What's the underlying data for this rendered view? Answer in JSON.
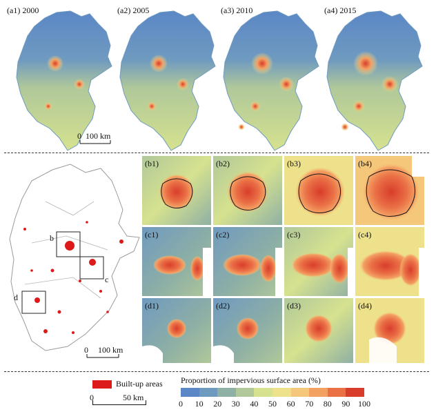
{
  "top_panels": [
    {
      "label": "(a1)  2000"
    },
    {
      "label": "(a2)  2005"
    },
    {
      "label": "(a3)  2010"
    },
    {
      "label": "(a4)  2015"
    }
  ],
  "top_scale": {
    "zero": "0",
    "distance": "100 km"
  },
  "left_map": {
    "box_labels": [
      "b",
      "c",
      "d"
    ],
    "scale": {
      "zero": "0",
      "distance": "100 km"
    }
  },
  "zoom_panels": [
    {
      "label": "(b1)"
    },
    {
      "label": "(b2)"
    },
    {
      "label": "(b3)"
    },
    {
      "label": "(b4)"
    },
    {
      "label": "(c1)"
    },
    {
      "label": "(c2)"
    },
    {
      "label": "(c3)"
    },
    {
      "label": "(c4)"
    },
    {
      "label": "(d1)"
    },
    {
      "label": "(d2)"
    },
    {
      "label": "(d3)"
    },
    {
      "label": "(d4)"
    }
  ],
  "legend": {
    "builtup_label": "Built-up areas",
    "builtup_color": "#dd1a1a",
    "scale": {
      "zero": "0",
      "distance": "50 km"
    },
    "colorbar_title": "Proportion of impervious surface area (%)",
    "colorbar_ticks": [
      "0",
      "10",
      "20",
      "30",
      "40",
      "50",
      "60",
      "70",
      "80",
      "90",
      "100"
    ],
    "colorbar_colors": [
      "#5b87c6",
      "#6f9ac0",
      "#8fb0a4",
      "#b0c89a",
      "#d6e28f",
      "#eee18b",
      "#f5c77a",
      "#f3a063",
      "#ea7046",
      "#d83d2b"
    ]
  }
}
